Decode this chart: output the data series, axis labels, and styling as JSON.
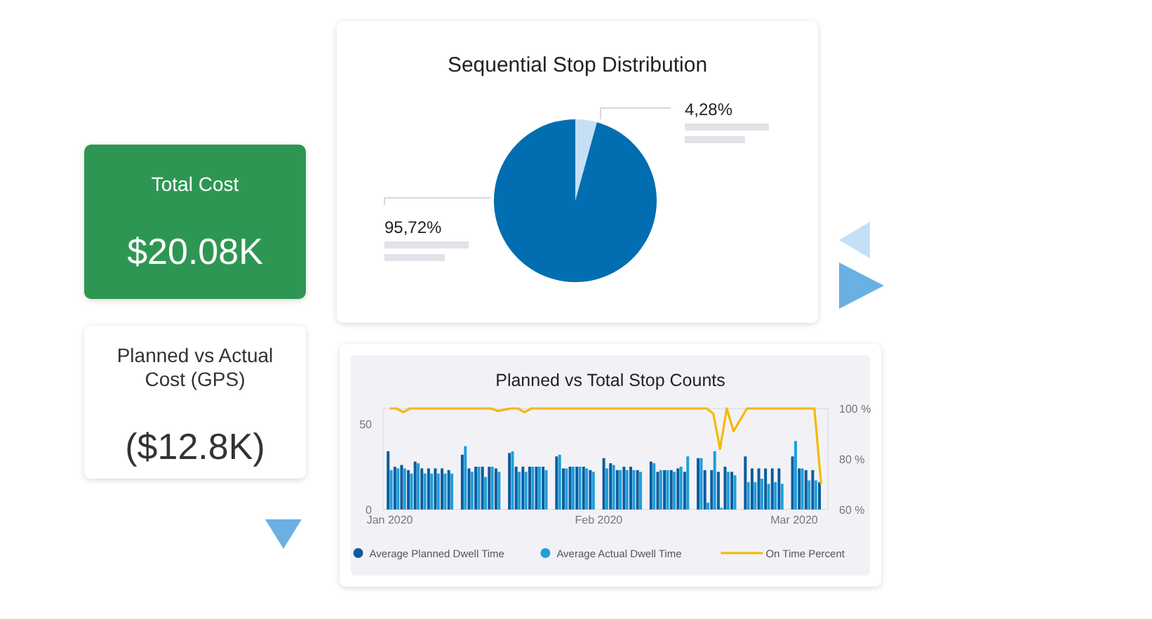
{
  "chart_data": [
    {
      "type": "other",
      "title": "Total Cost",
      "annotations": [
        "$20.08K"
      ]
    },
    {
      "type": "pie",
      "title": "Sequential Stop Distribution",
      "categories": [
        null,
        null
      ],
      "values": [
        4.28,
        95.72
      ],
      "colors": [
        "#c5e0f5",
        "#006eb0"
      ],
      "value_labels": [
        "4,28%",
        "95,72%"
      ]
    },
    {
      "type": "other",
      "title": "Planned vs Actual Cost (GPS)",
      "annotations": [
        "($12.8K)"
      ]
    },
    {
      "type": "bar",
      "title": "Planned vs Total Stop Counts",
      "x": [
        "2020-01-01",
        "2020-01-02",
        "2020-01-03",
        "2020-01-04",
        "2020-01-05",
        "2020-01-06",
        "2020-01-07",
        "2020-01-08",
        "2020-01-09",
        "2020-01-10",
        "2020-01-12",
        "2020-01-13",
        "2020-01-14",
        "2020-01-15",
        "2020-01-16",
        "2020-01-17",
        "2020-01-19",
        "2020-01-20",
        "2020-01-21",
        "2020-01-22",
        "2020-01-23",
        "2020-01-24",
        "2020-01-26",
        "2020-01-27",
        "2020-01-28",
        "2020-01-29",
        "2020-01-30",
        "2020-01-31",
        "2020-02-02",
        "2020-02-03",
        "2020-02-04",
        "2020-02-05",
        "2020-02-06",
        "2020-02-07",
        "2020-02-09",
        "2020-02-10",
        "2020-02-11",
        "2020-02-12",
        "2020-02-13",
        "2020-02-14",
        "2020-02-16",
        "2020-02-17",
        "2020-02-18",
        "2020-02-19",
        "2020-02-20",
        "2020-02-21",
        "2020-02-23",
        "2020-02-24",
        "2020-02-25",
        "2020-02-26",
        "2020-02-27",
        "2020-02-28",
        "2020-03-01",
        "2020-03-02",
        "2020-03-03",
        "2020-03-04",
        "2020-03-05"
      ],
      "series": [
        {
          "name": "Average Planned Dwell Time",
          "color": "#0b5c9e",
          "values": [
            34,
            25,
            26,
            23,
            28,
            24,
            24,
            24,
            24,
            23,
            32,
            24,
            25,
            25,
            25,
            24,
            33,
            25,
            25,
            25,
            25,
            25,
            31,
            24,
            25,
            25,
            25,
            23,
            30,
            27,
            23,
            25,
            25,
            23,
            28,
            22,
            23,
            23,
            24,
            22,
            30,
            23,
            23,
            22,
            25,
            22,
            31,
            24,
            24,
            24,
            24,
            24,
            31,
            24,
            23,
            23,
            16
          ]
        },
        {
          "name": "Average Actual Dwell Time",
          "color": "#1f9fdc",
          "values": [
            23,
            24,
            24,
            21,
            27,
            21,
            21,
            21,
            21,
            21,
            37,
            22,
            25,
            19,
            25,
            22,
            34,
            22,
            22,
            25,
            25,
            23,
            32,
            24,
            25,
            25,
            24,
            22,
            24,
            26,
            23,
            23,
            23,
            22,
            27,
            23,
            23,
            22,
            25,
            31,
            30,
            4,
            34,
            1,
            22,
            20,
            16,
            16,
            18,
            15,
            16,
            15,
            40,
            24,
            17,
            17,
            null
          ]
        },
        {
          "name": "On Time Percent",
          "type": "line",
          "axis": "y2",
          "color": "#f5b800",
          "values": [
            100,
            100,
            98.5,
            100,
            100,
            100,
            100,
            100,
            100,
            100,
            100,
            100,
            100,
            100,
            100,
            99,
            100,
            100,
            98.5,
            100,
            100,
            100,
            100,
            100,
            100,
            100,
            100,
            100,
            100,
            100,
            100,
            100,
            100,
            100,
            100,
            100,
            100,
            100,
            100,
            100,
            100,
            100,
            98,
            84,
            100,
            91,
            100,
            100,
            100,
            100,
            100,
            100,
            100,
            100,
            100,
            100,
            70
          ]
        }
      ],
      "xlim": [
        "2019-12-31",
        "2020-03-06"
      ],
      "xticks": [
        {
          "value": "2020-01-01",
          "label": "Jan 2020"
        },
        {
          "value": "2020-02-01",
          "label": "Feb 2020"
        },
        {
          "value": "2020-03-01",
          "label": "Mar 2020"
        }
      ],
      "ylim": [
        0,
        59
      ],
      "yticks": [
        0,
        50
      ],
      "y2lim": [
        60,
        100
      ],
      "y2ticks": [
        {
          "value": 60,
          "label": "60 %"
        },
        {
          "value": 80,
          "label": "80 %"
        },
        {
          "value": 100,
          "label": "100 %"
        }
      ],
      "legend": "bottom",
      "marker": "none",
      "line_style": "solid"
    }
  ]
}
